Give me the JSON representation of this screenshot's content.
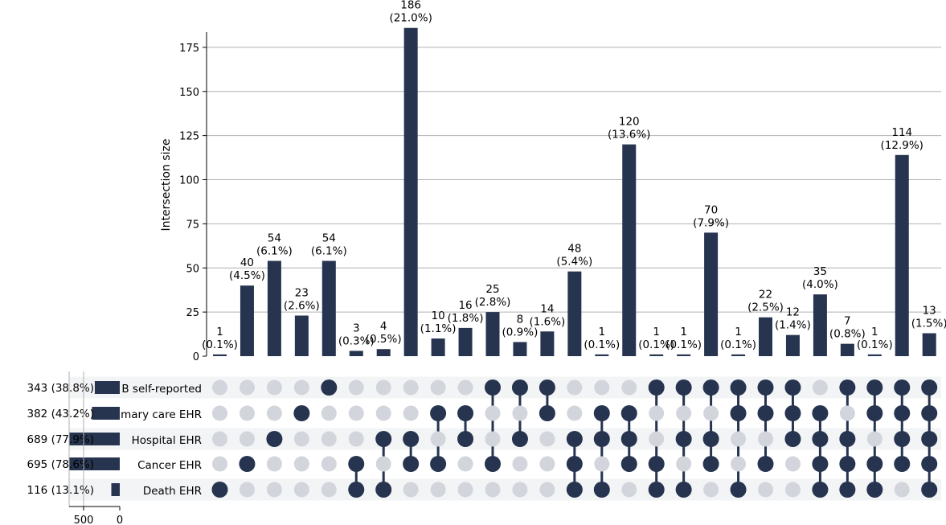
{
  "chart_data": {
    "type": "upset",
    "ylabel": "Intersection size",
    "ylim": [
      0,
      195
    ],
    "yticks": [
      0,
      25,
      50,
      75,
      100,
      125,
      150,
      175
    ],
    "sets": [
      {
        "name": "B self-reported",
        "size": 343,
        "pct": "(38.8%)"
      },
      {
        "name": "mary care EHR",
        "size": 382,
        "pct": "(43.2%)"
      },
      {
        "name": "Hospital EHR",
        "size": 689,
        "pct": "(77.9%)"
      },
      {
        "name": "Cancer EHR",
        "size": 695,
        "pct": "(78.6%)"
      },
      {
        "name": "Death EHR",
        "size": 116,
        "pct": "(13.1%)"
      }
    ],
    "set_size_ticks": [
      "500",
      "0"
    ],
    "intersections": [
      {
        "value": 1,
        "pct": "(0.1%)",
        "members": [
          0,
          0,
          0,
          0,
          1
        ]
      },
      {
        "value": 40,
        "pct": "(4.5%)",
        "members": [
          0,
          0,
          0,
          1,
          0
        ]
      },
      {
        "value": 54,
        "pct": "(6.1%)",
        "members": [
          0,
          0,
          1,
          0,
          0
        ]
      },
      {
        "value": 23,
        "pct": "(2.6%)",
        "members": [
          0,
          1,
          0,
          0,
          0
        ]
      },
      {
        "value": 54,
        "pct": "(6.1%)",
        "members": [
          1,
          0,
          0,
          0,
          0
        ]
      },
      {
        "value": 3,
        "pct": "(0.3%)",
        "members": [
          0,
          0,
          0,
          1,
          1
        ]
      },
      {
        "value": 4,
        "pct": "(0.5%)",
        "members": [
          0,
          0,
          1,
          0,
          1
        ]
      },
      {
        "value": 186,
        "pct": "(21.0%)",
        "members": [
          0,
          0,
          1,
          1,
          0
        ]
      },
      {
        "value": 10,
        "pct": "(1.1%)",
        "members": [
          0,
          1,
          0,
          1,
          0
        ]
      },
      {
        "value": 16,
        "pct": "(1.8%)",
        "members": [
          0,
          1,
          1,
          0,
          0
        ]
      },
      {
        "value": 25,
        "pct": "(2.8%)",
        "members": [
          1,
          0,
          0,
          1,
          0
        ]
      },
      {
        "value": 8,
        "pct": "(0.9%)",
        "members": [
          1,
          0,
          1,
          0,
          0
        ]
      },
      {
        "value": 14,
        "pct": "(1.6%)",
        "members": [
          1,
          1,
          0,
          0,
          0
        ]
      },
      {
        "value": 48,
        "pct": "(5.4%)",
        "members": [
          0,
          0,
          1,
          1,
          1
        ]
      },
      {
        "value": 1,
        "pct": "(0.1%)",
        "members": [
          0,
          1,
          1,
          0,
          1
        ]
      },
      {
        "value": 120,
        "pct": "(13.6%)",
        "members": [
          0,
          1,
          1,
          1,
          0
        ]
      },
      {
        "value": 1,
        "pct": "(0.1%)",
        "members": [
          1,
          0,
          0,
          1,
          1
        ]
      },
      {
        "value": 1,
        "pct": "(0.1%)",
        "members": [
          1,
          0,
          1,
          0,
          1
        ]
      },
      {
        "value": 70,
        "pct": "(7.9%)",
        "members": [
          1,
          0,
          1,
          1,
          0
        ]
      },
      {
        "value": 1,
        "pct": "(0.1%)",
        "members": [
          1,
          1,
          0,
          0,
          1
        ]
      },
      {
        "value": 22,
        "pct": "(2.5%)",
        "members": [
          1,
          1,
          0,
          1,
          0
        ]
      },
      {
        "value": 12,
        "pct": "(1.4%)",
        "members": [
          1,
          1,
          1,
          0,
          0
        ]
      },
      {
        "value": 35,
        "pct": "(4.0%)",
        "members": [
          0,
          1,
          1,
          1,
          1
        ]
      },
      {
        "value": 7,
        "pct": "(0.8%)",
        "members": [
          1,
          0,
          1,
          1,
          1
        ]
      },
      {
        "value": 1,
        "pct": "(0.1%)",
        "members": [
          1,
          1,
          0,
          1,
          1
        ]
      },
      {
        "value": 114,
        "pct": "(12.9%)",
        "members": [
          1,
          1,
          1,
          1,
          0
        ]
      },
      {
        "value": 13,
        "pct": "(1.5%)",
        "members": [
          1,
          1,
          1,
          1,
          1
        ]
      }
    ],
    "colors": {
      "bar": "#263450",
      "dot_off": "#d2d5db",
      "grid": "#b0b0b0",
      "stripe": "#f3f4f6"
    }
  }
}
